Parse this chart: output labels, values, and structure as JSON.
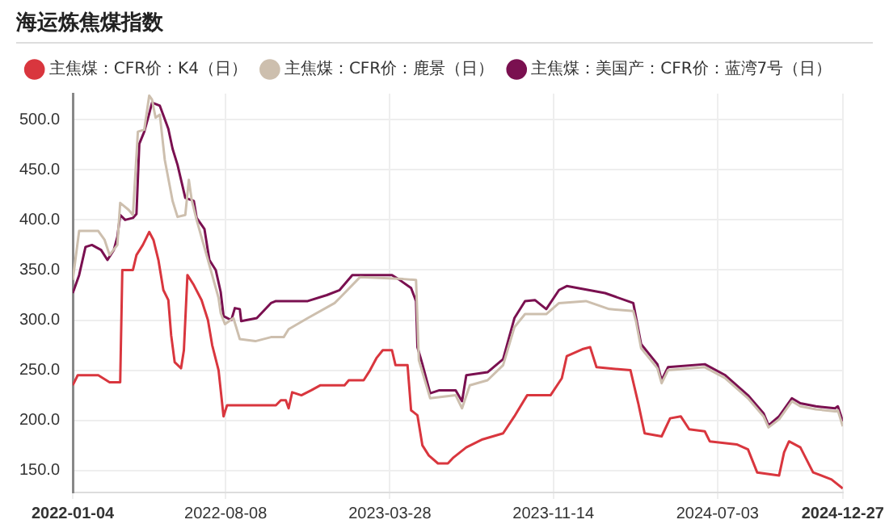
{
  "chart_data": {
    "type": "line",
    "title": "海运炼焦煤指数",
    "legend": "top",
    "grid": true,
    "marker": "none",
    "line_style": "solid",
    "xlim": [
      "2022-01-04",
      "2024-12-27"
    ],
    "xticks": [
      "2022-01-04",
      "2022-08-08",
      "2023-03-28",
      "2023-11-14",
      "2024-07-03",
      "2024-12-27"
    ],
    "ylim": [
      128,
      526
    ],
    "yticks": [
      {
        "value": 150,
        "label": "150.0"
      },
      {
        "value": 200,
        "label": "200.0"
      },
      {
        "value": 250,
        "label": "250.0"
      },
      {
        "value": 300,
        "label": "300.0"
      },
      {
        "value": 350,
        "label": "350.0"
      },
      {
        "value": 400,
        "label": "400.0"
      },
      {
        "value": 450,
        "label": "450.0"
      },
      {
        "value": 500,
        "label": "500.0"
      }
    ],
    "series": [
      {
        "name": "主焦煤：CFR价：K4（日）",
        "color": "#d9363e",
        "x": [
          "2022-01-04",
          "2022-01-11",
          "2022-02-09",
          "2022-02-25",
          "2022-03-12",
          "2022-03-15",
          "2022-03-30",
          "2022-04-04",
          "2022-04-13",
          "2022-04-22",
          "2022-04-28",
          "2022-05-05",
          "2022-05-12",
          "2022-05-19",
          "2022-05-23",
          "2022-05-28",
          "2022-06-06",
          "2022-06-10",
          "2022-06-15",
          "2022-06-24",
          "2022-07-05",
          "2022-07-14",
          "2022-07-20",
          "2022-07-29",
          "2022-08-05",
          "2022-08-10",
          "2022-10-18",
          "2022-10-25",
          "2022-11-01",
          "2022-11-05",
          "2022-11-10",
          "2022-11-23",
          "2022-12-07",
          "2022-12-20",
          "2023-01-23",
          "2023-01-29",
          "2023-02-19",
          "2023-02-28",
          "2023-03-09",
          "2023-03-18",
          "2023-03-31",
          "2023-04-05",
          "2023-04-22",
          "2023-04-27",
          "2023-05-06",
          "2023-05-13",
          "2023-05-22",
          "2023-06-04",
          "2023-06-18",
          "2023-06-26",
          "2023-07-05",
          "2023-07-14",
          "2023-08-06",
          "2023-09-04",
          "2023-09-20",
          "2023-10-08",
          "2023-11-10",
          "2023-11-26",
          "2023-12-03",
          "2023-12-25",
          "2024-01-05",
          "2024-01-14",
          "2024-03-02",
          "2024-03-13",
          "2024-03-22",
          "2024-04-15",
          "2024-04-27",
          "2024-05-12",
          "2024-05-24",
          "2024-06-15",
          "2024-06-22",
          "2024-07-30",
          "2024-08-15",
          "2024-08-28",
          "2024-09-28",
          "2024-10-05",
          "2024-10-12",
          "2024-10-28",
          "2024-11-15",
          "2024-12-11",
          "2024-12-27"
        ],
        "values": [
          235,
          245,
          245,
          238,
          238,
          350,
          350,
          365,
          375,
          388,
          380,
          360,
          330,
          320,
          285,
          258,
          252,
          270,
          345,
          335,
          320,
          300,
          275,
          250,
          204,
          215,
          215,
          220,
          220,
          212,
          228,
          225,
          230,
          235,
          235,
          240,
          240,
          250,
          262,
          270,
          270,
          255,
          255,
          210,
          205,
          175,
          165,
          157,
          157,
          163,
          168,
          173,
          181,
          187,
          204,
          225,
          225,
          242,
          264,
          271,
          273,
          253,
          250,
          217,
          187,
          184,
          202,
          204,
          191,
          189,
          179,
          176,
          171,
          148,
          145,
          168,
          179,
          173,
          148,
          141,
          132
        ]
      },
      {
        "name": "主焦煤：CFR价：鹿景（日）",
        "color": "#cdbfae",
        "x": [
          "2022-01-04",
          "2022-01-13",
          "2022-02-09",
          "2022-02-18",
          "2022-02-25",
          "2022-03-08",
          "2022-03-12",
          "2022-03-24",
          "2022-03-30",
          "2022-04-06",
          "2022-04-15",
          "2022-04-22",
          "2022-04-26",
          "2022-05-01",
          "2022-05-07",
          "2022-05-14",
          "2022-05-25",
          "2022-06-01",
          "2022-06-12",
          "2022-06-17",
          "2022-06-21",
          "2022-06-28",
          "2022-07-16",
          "2022-07-29",
          "2022-08-01",
          "2022-08-07",
          "2022-08-19",
          "2022-08-28",
          "2022-09-19",
          "2022-10-11",
          "2022-10-29",
          "2022-11-05",
          "2022-12-02",
          "2023-01-09",
          "2023-01-16",
          "2023-02-14",
          "2023-04-16",
          "2023-05-04",
          "2023-05-08",
          "2023-05-24",
          "2023-06-29",
          "2023-07-08",
          "2023-07-19",
          "2023-08-13",
          "2023-09-04",
          "2023-09-20",
          "2023-10-05",
          "2023-11-04",
          "2023-11-22",
          "2023-12-30",
          "2024-02-01",
          "2024-03-06",
          "2024-03-10",
          "2024-03-17",
          "2024-04-09",
          "2024-04-15",
          "2024-04-24",
          "2024-06-15",
          "2024-07-14",
          "2024-08-15",
          "2024-09-06",
          "2024-09-13",
          "2024-09-28",
          "2024-10-16",
          "2024-10-28",
          "2024-11-19",
          "2024-12-16",
          "2024-12-20",
          "2024-12-27"
        ],
        "values": [
          340,
          389,
          389,
          380,
          365,
          375,
          417,
          410,
          405,
          488,
          490,
          524,
          520,
          502,
          505,
          460,
          419,
          403,
          405,
          440,
          420,
          400,
          355,
          322,
          307,
          296,
          302,
          281,
          279,
          283,
          283,
          291,
          302,
          317,
          322,
          343,
          341,
          340,
          260,
          222,
          225,
          212,
          235,
          240,
          255,
          293,
          306,
          306,
          317,
          319,
          311,
          309,
          298,
          272,
          252,
          237,
          250,
          253,
          242,
          222,
          204,
          193,
          201,
          219,
          214,
          211,
          209,
          210,
          194
        ]
      },
      {
        "name": "主焦煤：美国产：CFR价：蓝湾7号（日）",
        "color": "#7a1050",
        "x": [
          "2022-01-04",
          "2022-01-13",
          "2022-01-22",
          "2022-01-31",
          "2022-02-13",
          "2022-02-22",
          "2022-03-03",
          "2022-03-08",
          "2022-03-12",
          "2022-03-19",
          "2022-03-30",
          "2022-04-04",
          "2022-04-08",
          "2022-04-15",
          "2022-04-22",
          "2022-04-26",
          "2022-05-07",
          "2022-05-19",
          "2022-05-25",
          "2022-06-01",
          "2022-06-12",
          "2022-06-24",
          "2022-06-28",
          "2022-07-09",
          "2022-07-16",
          "2022-07-25",
          "2022-08-01",
          "2022-08-05",
          "2022-08-16",
          "2022-08-21",
          "2022-08-28",
          "2022-08-30",
          "2022-09-21",
          "2022-10-11",
          "2022-10-18",
          "2022-12-02",
          "2022-12-29",
          "2023-01-16",
          "2023-02-03",
          "2023-03-31",
          "2023-04-11",
          "2023-04-27",
          "2023-05-04",
          "2023-05-06",
          "2023-05-13",
          "2023-05-24",
          "2023-06-06",
          "2023-06-29",
          "2023-07-08",
          "2023-07-14",
          "2023-08-13",
          "2023-09-04",
          "2023-09-20",
          "2023-10-05",
          "2023-10-19",
          "2023-11-04",
          "2023-11-22",
          "2023-12-03",
          "2024-01-26",
          "2024-03-06",
          "2024-03-10",
          "2024-03-17",
          "2024-04-09",
          "2024-04-15",
          "2024-04-24",
          "2024-06-15",
          "2024-07-14",
          "2024-08-15",
          "2024-09-06",
          "2024-09-13",
          "2024-09-28",
          "2024-10-16",
          "2024-10-28",
          "2024-11-19",
          "2024-12-16",
          "2024-12-20",
          "2024-12-27"
        ],
        "values": [
          327,
          345,
          373,
          375,
          370,
          360,
          370,
          383,
          405,
          400,
          402,
          406,
          476,
          488,
          506,
          517,
          514,
          491,
          471,
          455,
          422,
          419,
          402,
          391,
          360,
          350,
          328,
          304,
          300,
          312,
          311,
          299,
          302,
          317,
          319,
          319,
          325,
          330,
          345,
          345,
          340,
          332,
          319,
          273,
          256,
          227,
          230,
          230,
          219,
          245,
          248,
          261,
          302,
          319,
          320,
          311,
          330,
          334,
          327,
          317,
          302,
          276,
          256,
          240,
          253,
          256,
          245,
          225,
          207,
          195,
          204,
          222,
          217,
          214,
          212,
          214,
          199
        ]
      }
    ]
  }
}
